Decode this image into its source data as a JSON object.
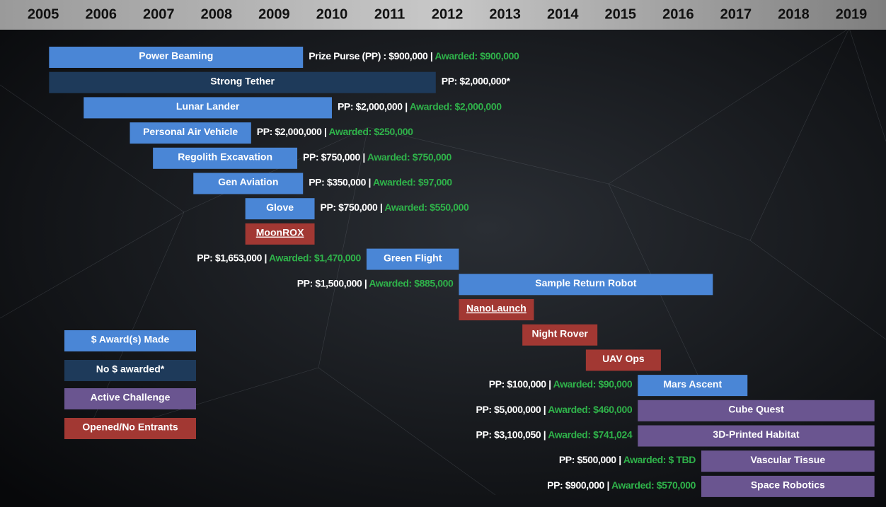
{
  "chart_data": {
    "type": "timeline",
    "xlim": [
      2004.25,
      2019.6
    ],
    "xticks": [
      2005,
      2006,
      2007,
      2008,
      2009,
      2010,
      2011,
      2012,
      2013,
      2014,
      2015,
      2016,
      2017,
      2018,
      2019
    ],
    "separator": "|",
    "statuses": [
      {
        "name": "$ Award(s) Made",
        "color": "#4a86d6"
      },
      {
        "name": "No $ awarded*",
        "color": "#1e3a5a"
      },
      {
        "name": "Active Challenge",
        "color": "#6a5590"
      },
      {
        "name": "Opened/No Entrants",
        "color": "#a23833"
      }
    ],
    "items": [
      {
        "label": "Power Beaming",
        "start": 2005.1,
        "end": 2009.5,
        "status": 0,
        "pp": "Prize Purse (PP) : $900,000",
        "awarded": "Awarded: $900,000",
        "side": "right"
      },
      {
        "label": "Strong Tether",
        "start": 2005.1,
        "end": 2011.8,
        "status": 1,
        "pp": "PP: $2,000,000*",
        "side": "right"
      },
      {
        "label": "Lunar Lander",
        "start": 2005.7,
        "end": 2010.0,
        "status": 0,
        "pp": "PP: $2,000,000",
        "awarded": "Awarded: $2,000,000",
        "side": "right"
      },
      {
        "label": "Personal Air Vehicle",
        "start": 2006.5,
        "end": 2008.6,
        "status": 0,
        "pp": "PP: $2,000,000",
        "awarded": "Awarded: $250,000",
        "side": "right"
      },
      {
        "label": "Regolith Excavation",
        "start": 2006.9,
        "end": 2009.4,
        "status": 0,
        "pp": "PP: $750,000",
        "awarded": "Awarded: $750,000",
        "side": "right"
      },
      {
        "label": "Gen Aviation",
        "start": 2007.6,
        "end": 2009.5,
        "status": 0,
        "pp": "PP: $350,000",
        "awarded": "Awarded: $97,000",
        "side": "right"
      },
      {
        "label": "Glove",
        "start": 2008.5,
        "end": 2009.7,
        "status": 0,
        "pp": "PP: $750,000",
        "awarded": "Awarded: $550,000",
        "side": "right"
      },
      {
        "label": "MoonROX",
        "start": 2008.5,
        "end": 2009.7,
        "status": 3,
        "underline": true
      },
      {
        "label": "Green Flight",
        "start": 2010.6,
        "end": 2012.2,
        "status": 0,
        "pp": "PP: $1,653,000",
        "awarded": "Awarded: $1,470,000",
        "side": "left"
      },
      {
        "label": "Sample Return Robot",
        "start": 2012.2,
        "end": 2016.6,
        "status": 0,
        "pp": "PP: $1,500,000",
        "awarded": "Awarded: $885,000",
        "side": "left"
      },
      {
        "label": "NanoLaunch",
        "start": 2012.2,
        "end": 2013.5,
        "status": 3,
        "underline": true
      },
      {
        "label": "Night Rover",
        "start": 2013.3,
        "end": 2014.6,
        "status": 3
      },
      {
        "label": "UAV Ops",
        "start": 2014.4,
        "end": 2015.7,
        "status": 3
      },
      {
        "label": "Mars Ascent",
        "start": 2015.3,
        "end": 2017.2,
        "status": 0,
        "pp": "PP: $100,000",
        "awarded": "Awarded: $90,000",
        "side": "left"
      },
      {
        "label": "Cube Quest",
        "start": 2015.3,
        "end": 2019.4,
        "status": 2,
        "pp": "PP: $5,000,000",
        "awarded": "Awarded: $460,000",
        "side": "left"
      },
      {
        "label": "3D-Printed Habitat",
        "start": 2015.3,
        "end": 2019.4,
        "status": 2,
        "pp": "PP: $3,100,050",
        "awarded": "Awarded: $741,024",
        "side": "left"
      },
      {
        "label": "Vascular Tissue",
        "start": 2016.4,
        "end": 2019.4,
        "status": 2,
        "pp": "PP: $500,000",
        "awarded": "Awarded: $ TBD",
        "side": "left"
      },
      {
        "label": "Space Robotics",
        "start": 2016.4,
        "end": 2019.4,
        "status": 2,
        "pp": "PP: $900,000",
        "awarded": "Awarded: $570,000",
        "side": "left"
      }
    ]
  }
}
